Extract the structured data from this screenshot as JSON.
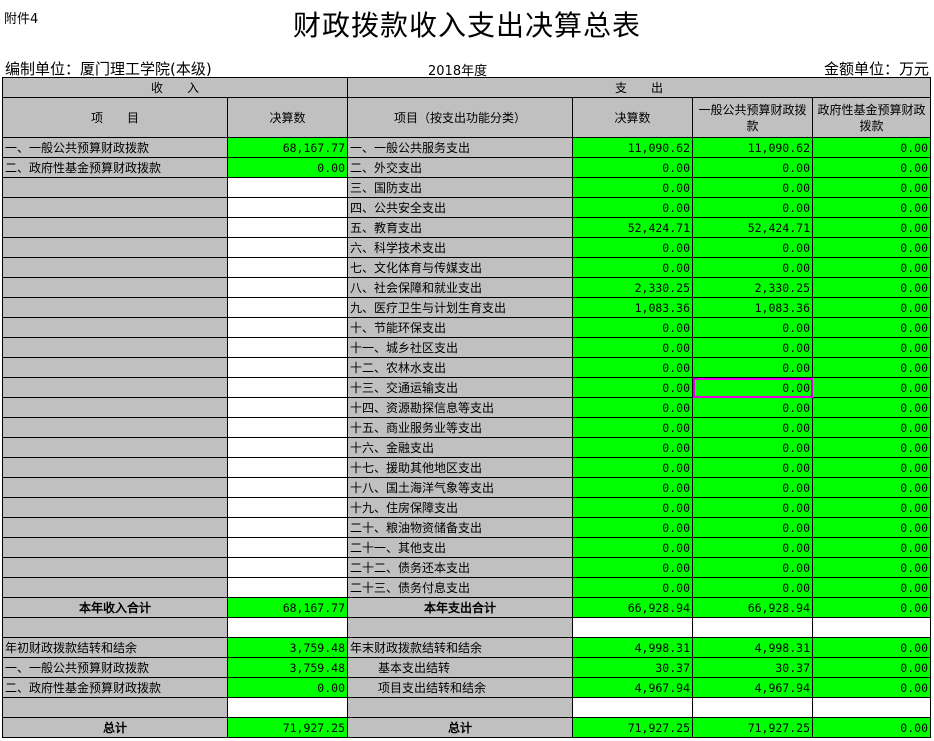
{
  "attachment": "附件4",
  "title": "财政拨款收入支出决算总表",
  "unit": "编制单位：厦门理工学院(本级)",
  "year": "2018年度",
  "money_unit": "金额单位：万元",
  "headers": {
    "income": "收　　入",
    "expense": "支　　出",
    "item": "项　　目",
    "amount": "决算数",
    "exp_item": "项目（按支出功能分类）",
    "exp_amount": "决算数",
    "general": "一般公共预算财政拨款",
    "fund": "政府性基金预算财政拨款"
  },
  "income_rows": [
    {
      "item": "一、一般公共预算财政拨款",
      "amount": "68,167.77"
    },
    {
      "item": "二、政府性基金预算财政拨款",
      "amount": "0.00"
    }
  ],
  "expense_rows": [
    {
      "item": "一、一般公共服务支出",
      "total": "11,090.62",
      "general": "11,090.62",
      "fund": "0.00"
    },
    {
      "item": "二、外交支出",
      "total": "0.00",
      "general": "0.00",
      "fund": "0.00"
    },
    {
      "item": "三、国防支出",
      "total": "0.00",
      "general": "0.00",
      "fund": "0.00"
    },
    {
      "item": "四、公共安全支出",
      "total": "0.00",
      "general": "0.00",
      "fund": "0.00"
    },
    {
      "item": "五、教育支出",
      "total": "52,424.71",
      "general": "52,424.71",
      "fund": "0.00"
    },
    {
      "item": "六、科学技术支出",
      "total": "0.00",
      "general": "0.00",
      "fund": "0.00"
    },
    {
      "item": "七、文化体育与传媒支出",
      "total": "0.00",
      "general": "0.00",
      "fund": "0.00"
    },
    {
      "item": "八、社会保障和就业支出",
      "total": "2,330.25",
      "general": "2,330.25",
      "fund": "0.00"
    },
    {
      "item": "九、医疗卫生与计划生育支出",
      "total": "1,083.36",
      "general": "1,083.36",
      "fund": "0.00"
    },
    {
      "item": "十、节能环保支出",
      "total": "0.00",
      "general": "0.00",
      "fund": "0.00"
    },
    {
      "item": "十一、城乡社区支出",
      "total": "0.00",
      "general": "0.00",
      "fund": "0.00"
    },
    {
      "item": "十二、农林水支出",
      "total": "0.00",
      "general": "0.00",
      "fund": "0.00"
    },
    {
      "item": "十三、交通运输支出",
      "total": "0.00",
      "general": "0.00",
      "fund": "0.00"
    },
    {
      "item": "十四、资源勘探信息等支出",
      "total": "0.00",
      "general": "0.00",
      "fund": "0.00"
    },
    {
      "item": "十五、商业服务业等支出",
      "total": "0.00",
      "general": "0.00",
      "fund": "0.00"
    },
    {
      "item": "十六、金融支出",
      "total": "0.00",
      "general": "0.00",
      "fund": "0.00"
    },
    {
      "item": "十七、援助其他地区支出",
      "total": "0.00",
      "general": "0.00",
      "fund": "0.00"
    },
    {
      "item": "十八、国土海洋气象等支出",
      "total": "0.00",
      "general": "0.00",
      "fund": "0.00"
    },
    {
      "item": "十九、住房保障支出",
      "total": "0.00",
      "general": "0.00",
      "fund": "0.00"
    },
    {
      "item": "二十、粮油物资储备支出",
      "total": "0.00",
      "general": "0.00",
      "fund": "0.00"
    },
    {
      "item": "二十一、其他支出",
      "total": "0.00",
      "general": "0.00",
      "fund": "0.00"
    },
    {
      "item": "二十二、债务还本支出",
      "total": "0.00",
      "general": "0.00",
      "fund": "0.00"
    },
    {
      "item": "二十三、债务付息支出",
      "total": "0.00",
      "general": "0.00",
      "fund": "0.00"
    }
  ],
  "year_total": {
    "income_label": "本年收入合计",
    "income": "68,167.77",
    "expense_label": "本年支出合计",
    "total": "66,928.94",
    "general": "66,928.94",
    "fund": "0.00"
  },
  "carry_rows": [
    {
      "item": "年初财政拨款结转和结余",
      "amount": "3,759.48",
      "exp_item": "年末财政拨款结转和结余",
      "total": "4,998.31",
      "general": "4,998.31",
      "fund": "0.00",
      "indent": false
    },
    {
      "item": "一、一般公共预算财政拨款",
      "amount": "3,759.48",
      "exp_item": "基本支出结转",
      "total": "30.37",
      "general": "30.37",
      "fund": "0.00",
      "indent": true
    },
    {
      "item": "二、政府性基金预算财政拨款",
      "amount": "0.00",
      "exp_item": "项目支出结转和结余",
      "total": "4,967.94",
      "general": "4,967.94",
      "fund": "0.00",
      "indent": true
    }
  ],
  "grand_total": {
    "income_label": "总计",
    "income": "71,927.25",
    "expense_label": "总计",
    "total": "71,927.25",
    "general": "71,927.25",
    "fund": "0.00"
  },
  "colors": {
    "header_gray": "#c0c0c0",
    "value_green": "#00ff00",
    "selection": "#e000e0"
  }
}
